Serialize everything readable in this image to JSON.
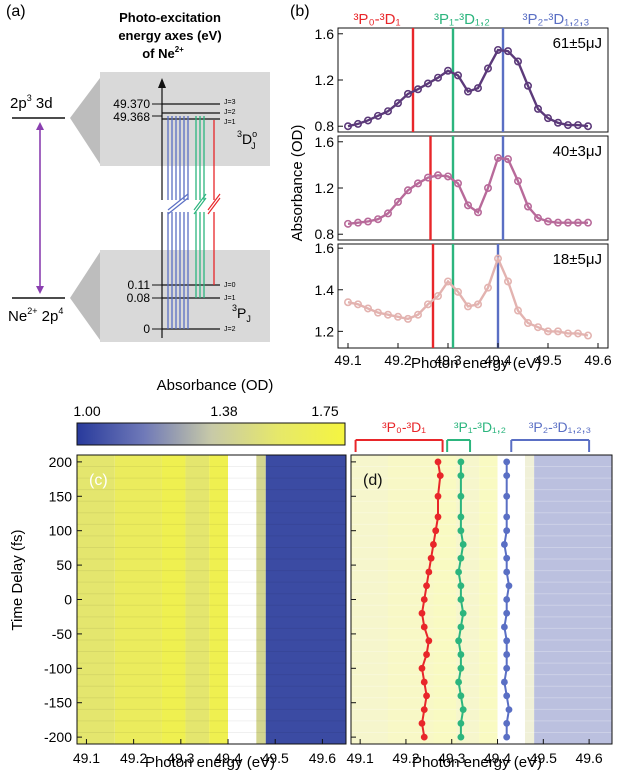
{
  "panel_labels": {
    "a": "(a)",
    "b": "(b)",
    "c": "(c)",
    "d": "(d)"
  },
  "colors": {
    "red": "#e8262a",
    "green": "#2cb57e",
    "blue": "#5a6fc4",
    "purple": "#8a3fb0",
    "dark_purple": "#5c3a7a",
    "mid_pink": "#b86a9a",
    "light_pink": "#e3b3b0"
  },
  "panel_a": {
    "title_lines": [
      "Photo-excitation",
      "energy axes (eV)",
      "of Ne"
    ],
    "title_sup": "2+",
    "upper_config": {
      "main": "2p",
      "sup": "3",
      "tail": " 3d"
    },
    "lower_config": {
      "pre": "Ne",
      "sup": "2+",
      "main": " 2p",
      "sup2": "4"
    },
    "upper_values": [
      "49.370",
      "49.368"
    ],
    "upper_J": [
      "J=3",
      "J=2",
      "J=1"
    ],
    "upper_term": {
      "pre": "3",
      "main": "D",
      "sup": "o",
      "sub": "J"
    },
    "lower_values": [
      "0.11",
      "0.08",
      "0"
    ],
    "lower_J": [
      "J=0",
      "J=1",
      "J=2"
    ],
    "lower_term": {
      "pre": "3",
      "main": "P",
      "sub": "J"
    }
  },
  "panel_b": {
    "transitions": [
      {
        "text": "³P₀-³D₁",
        "color": "#e8262a"
      },
      {
        "text": "³P₁-³D₁,₂",
        "color": "#2cb57e"
      },
      {
        "text": "³P₂-³D₁,₂,₃",
        "color": "#5a6fc4"
      }
    ],
    "ylabel": "Absorbance (OD)",
    "xlabel": "Photon energy (eV)",
    "x_ticks": [
      "49.1",
      "49.2",
      "49.3",
      "49.4",
      "49.5",
      "49.6"
    ]
  },
  "panel_c": {
    "colorbar_title": "Absorbance (OD)",
    "colorbar_ticks": [
      "1.00",
      "1.38",
      "1.75"
    ],
    "ylabel": "Time Delay (fs)",
    "xlabel": "Photon energy (eV)",
    "x_ticks": [
      "49.1",
      "49.2",
      "49.3",
      "49.4",
      "49.5",
      "49.6"
    ],
    "y_ticks": [
      "200",
      "150",
      "100",
      "50",
      "0",
      "-50",
      "-100",
      "-150",
      "-200"
    ]
  },
  "panel_d": {
    "xlabel": "Photon energy (eV)",
    "x_ticks": [
      "49.1",
      "49.2",
      "49.3",
      "49.4",
      "49.5",
      "49.6"
    ]
  },
  "chart_data": [
    {
      "type": "line",
      "panel": "b-top",
      "annotation": "61±5μJ",
      "xlim": [
        49.08,
        49.62
      ],
      "ylim": [
        0.75,
        1.65
      ],
      "y_ticks": [
        "0.8",
        "1.2",
        "1.6"
      ],
      "vlines": [
        49.23,
        49.31,
        49.41
      ],
      "x": [
        49.1,
        49.12,
        49.14,
        49.16,
        49.18,
        49.2,
        49.22,
        49.24,
        49.26,
        49.28,
        49.3,
        49.32,
        49.34,
        49.36,
        49.38,
        49.4,
        49.42,
        49.44,
        49.46,
        49.48,
        49.5,
        49.52,
        49.54,
        49.56,
        49.58
      ],
      "y": [
        0.8,
        0.82,
        0.85,
        0.89,
        0.93,
        1.0,
        1.08,
        1.12,
        1.17,
        1.22,
        1.28,
        1.24,
        1.1,
        1.13,
        1.3,
        1.46,
        1.45,
        1.36,
        1.15,
        0.95,
        0.87,
        0.83,
        0.81,
        0.81,
        0.8
      ]
    },
    {
      "type": "line",
      "panel": "b-middle",
      "annotation": "40±3μJ",
      "xlim": [
        49.08,
        49.62
      ],
      "ylim": [
        0.75,
        1.65
      ],
      "y_ticks": [
        "0.8",
        "1.2",
        "1.6"
      ],
      "vlines": [
        49.265,
        49.31,
        49.41
      ],
      "x": [
        49.1,
        49.12,
        49.14,
        49.16,
        49.18,
        49.2,
        49.22,
        49.24,
        49.26,
        49.28,
        49.3,
        49.32,
        49.34,
        49.36,
        49.38,
        49.4,
        49.42,
        49.44,
        49.46,
        49.48,
        49.5,
        49.52,
        49.54,
        49.56,
        49.58
      ],
      "y": [
        0.89,
        0.9,
        0.91,
        0.93,
        0.98,
        1.08,
        1.18,
        1.24,
        1.29,
        1.31,
        1.3,
        1.24,
        1.05,
        0.99,
        1.2,
        1.46,
        1.45,
        1.26,
        1.04,
        0.94,
        0.91,
        0.9,
        0.9,
        0.9,
        0.9
      ]
    },
    {
      "type": "line",
      "panel": "b-bottom",
      "annotation": "18±5μJ",
      "xlim": [
        49.08,
        49.62
      ],
      "ylim": [
        1.12,
        1.62
      ],
      "y_ticks": [
        "1.2",
        "1.4",
        "1.6"
      ],
      "vlines": [
        49.27,
        49.31,
        49.4
      ],
      "x": [
        49.1,
        49.12,
        49.14,
        49.16,
        49.18,
        49.2,
        49.22,
        49.24,
        49.26,
        49.28,
        49.3,
        49.32,
        49.34,
        49.36,
        49.38,
        49.4,
        49.42,
        49.44,
        49.46,
        49.48,
        49.5,
        49.52,
        49.54,
        49.56,
        49.58
      ],
      "y": [
        1.34,
        1.33,
        1.31,
        1.29,
        1.28,
        1.27,
        1.26,
        1.28,
        1.33,
        1.37,
        1.44,
        1.39,
        1.32,
        1.33,
        1.41,
        1.55,
        1.44,
        1.3,
        1.24,
        1.22,
        1.2,
        1.2,
        1.19,
        1.19,
        1.18
      ]
    },
    {
      "type": "heatmap",
      "panel": "c",
      "xlim": [
        49.08,
        49.65
      ],
      "ylim": [
        -210,
        210
      ],
      "colorscale_range": [
        1.0,
        1.75
      ],
      "bands": [
        {
          "from": 49.08,
          "to": 49.16,
          "value": 1.55
        },
        {
          "from": 49.16,
          "to": 49.26,
          "value": 1.62
        },
        {
          "from": 49.26,
          "to": 49.31,
          "value": 1.68
        },
        {
          "from": 49.31,
          "to": 49.36,
          "value": 1.55
        },
        {
          "from": 49.36,
          "to": 49.4,
          "value": 1.68
        },
        {
          "from": 49.4,
          "to": 49.46,
          "value": 1.8
        },
        {
          "from": 49.46,
          "to": 49.48,
          "value": 1.45
        },
        {
          "from": 49.48,
          "to": 49.65,
          "value": 1.05
        }
      ]
    },
    {
      "type": "scatter",
      "panel": "d",
      "xlim": [
        49.08,
        49.65
      ],
      "ylim": [
        -210,
        210
      ],
      "series": [
        {
          "name": "³P₀-³D₁",
          "color": "#e8262a",
          "x": [
            49.24,
            49.235,
            49.24,
            49.245,
            49.24,
            49.235,
            49.245,
            49.25,
            49.24,
            49.235,
            49.24,
            49.245,
            49.25,
            49.255,
            49.26,
            49.265,
            49.27,
            49.27,
            49.275,
            49.27
          ],
          "y": [
            -200,
            -180,
            -160,
            -140,
            -120,
            -100,
            -80,
            -60,
            -40,
            -20,
            0,
            20,
            40,
            60,
            80,
            100,
            120,
            150,
            180,
            200
          ]
        },
        {
          "name": "³P₁-³D₁,₂",
          "color": "#2cb57e",
          "x": [
            49.32,
            49.32,
            49.325,
            49.32,
            49.315,
            49.32,
            49.32,
            49.315,
            49.32,
            49.325,
            49.32,
            49.32,
            49.315,
            49.32,
            49.325,
            49.32,
            49.32,
            49.32,
            49.32,
            49.32
          ],
          "y": [
            -200,
            -180,
            -160,
            -140,
            -120,
            -100,
            -80,
            -60,
            -40,
            -20,
            0,
            20,
            40,
            60,
            80,
            100,
            120,
            150,
            180,
            200
          ]
        },
        {
          "name": "³P₂-³D₁,₂,₃",
          "color": "#5a6fc4",
          "x": [
            49.42,
            49.42,
            49.425,
            49.42,
            49.415,
            49.42,
            49.42,
            49.42,
            49.415,
            49.42,
            49.42,
            49.425,
            49.42,
            49.42,
            49.415,
            49.42,
            49.42,
            49.42,
            49.42,
            49.42
          ],
          "y": [
            -200,
            -180,
            -160,
            -140,
            -120,
            -100,
            -80,
            -60,
            -40,
            -20,
            0,
            20,
            40,
            60,
            80,
            100,
            120,
            150,
            180,
            200
          ]
        }
      ]
    }
  ]
}
